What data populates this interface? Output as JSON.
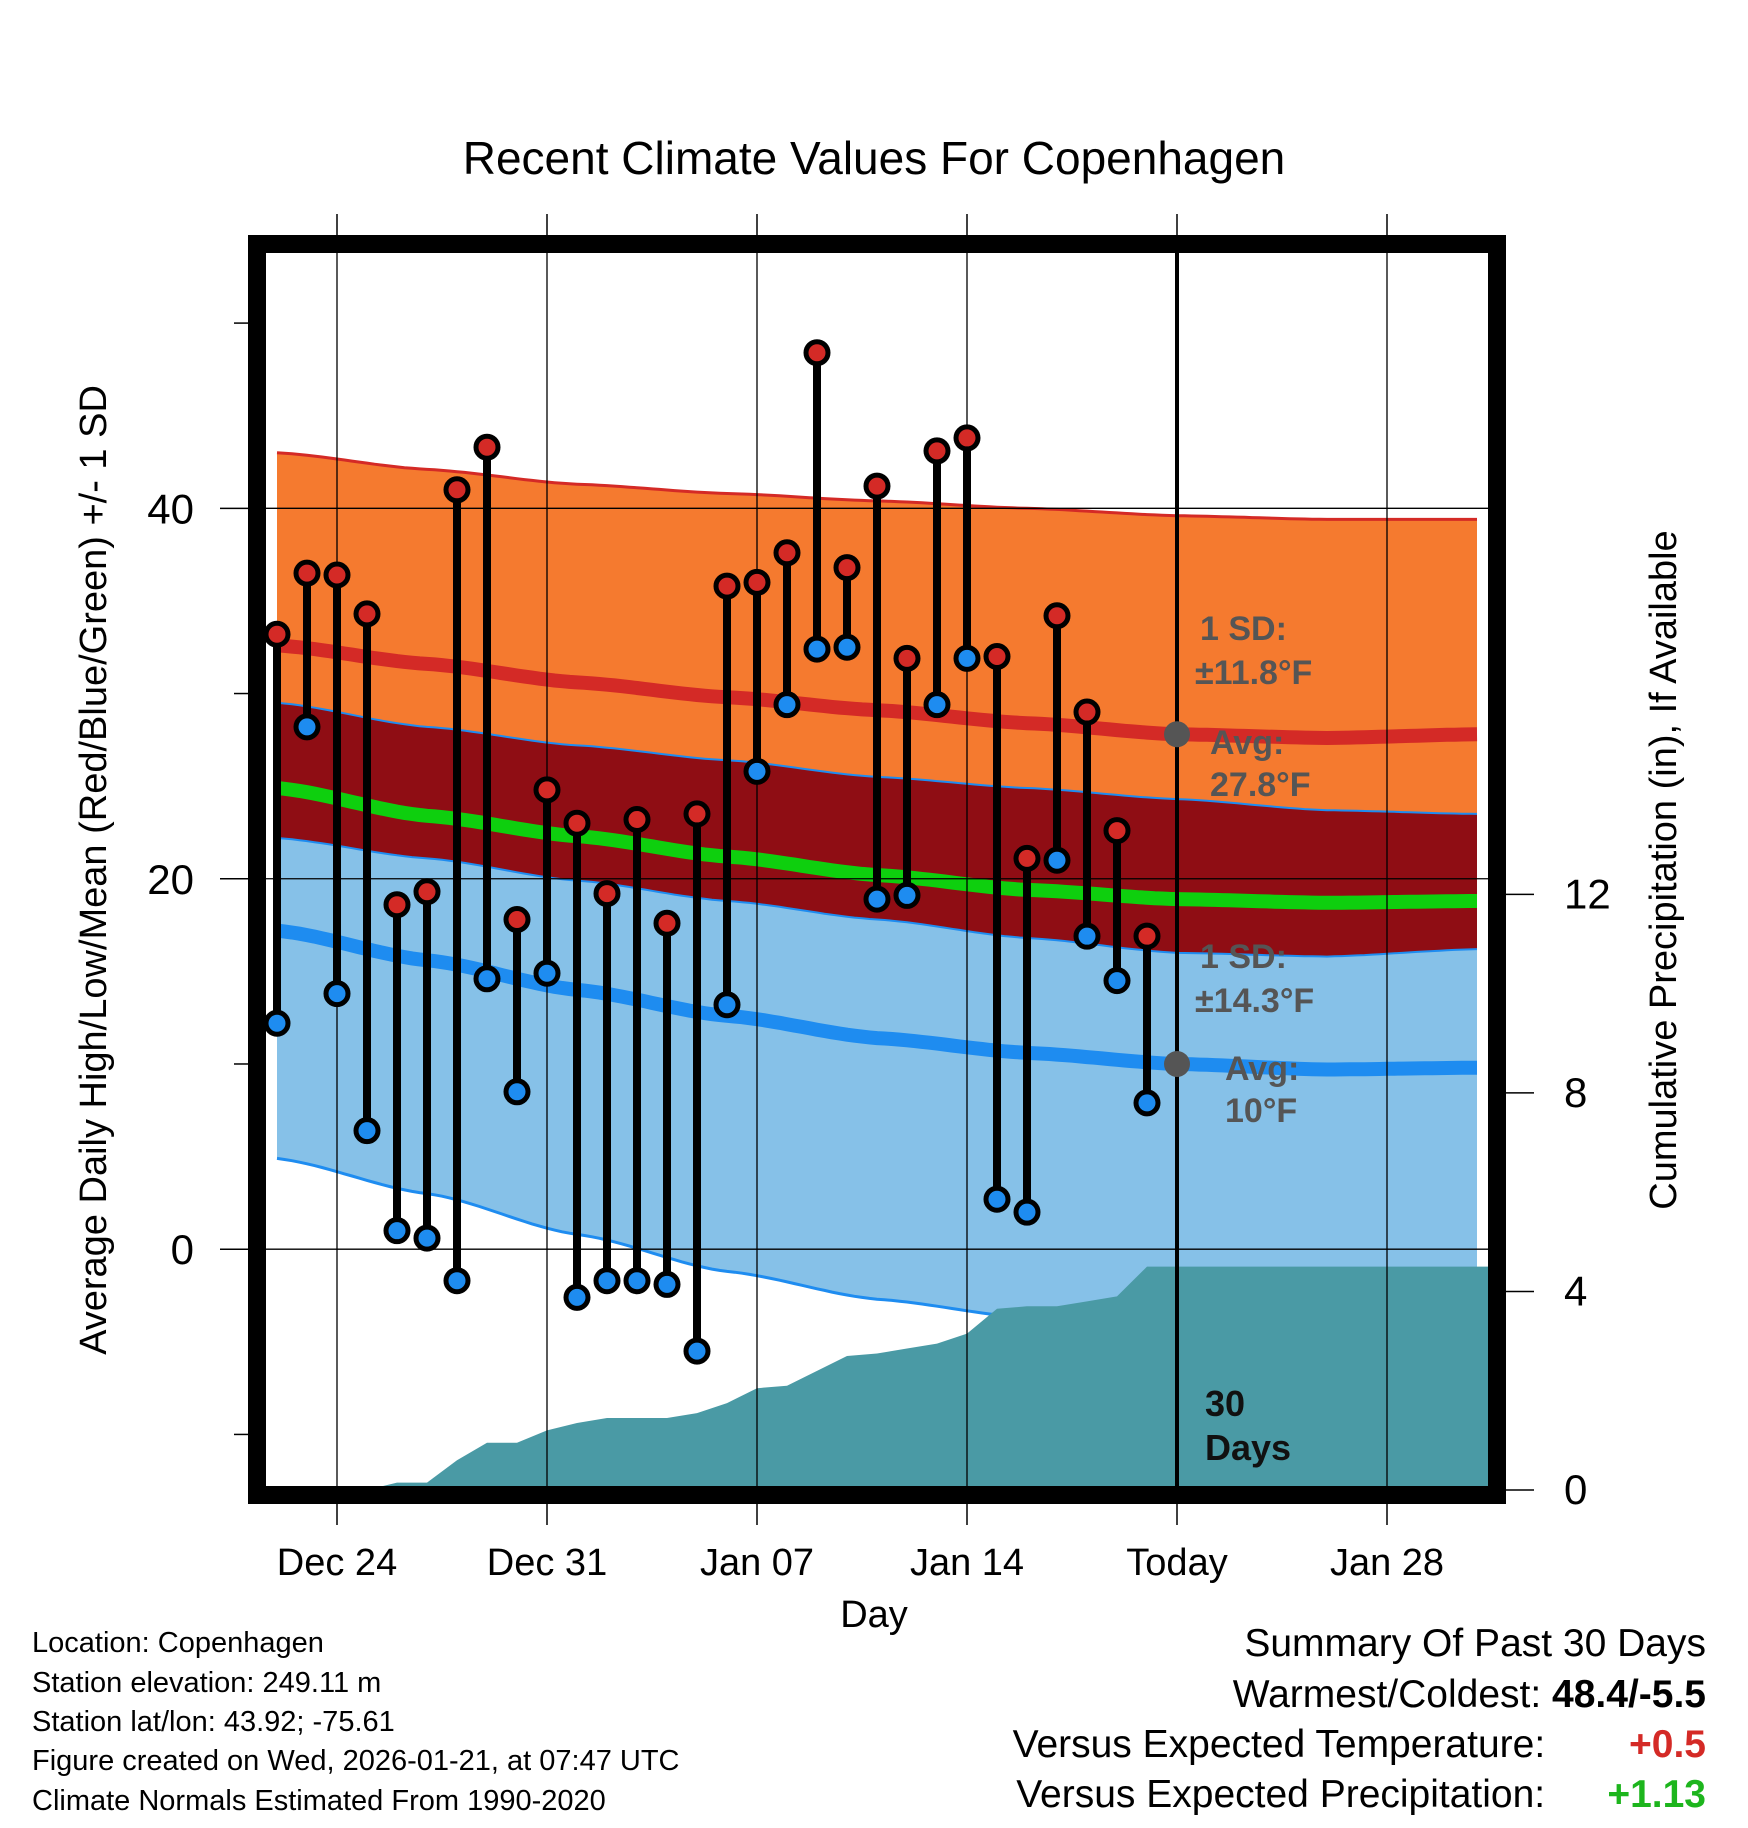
{
  "chart_data": {
    "type": "line",
    "title": "Recent Climate Values For Copenhagen",
    "xlabel": "Day",
    "ylabel": "Average Daily High/Low/Mean (Red/Blue/Green) +/- 1 SD",
    "y2label": "Cumulative Precipitation (in), If Available",
    "ylim": [
      -13,
      54
    ],
    "y2lim": [
      0,
      25
    ],
    "xlim": [
      0.5,
      41.5
    ],
    "y_ticks": [
      "40",
      "20",
      "0"
    ],
    "y2_ticks": [
      "12",
      "8",
      "4",
      "0"
    ],
    "x_tick_labels": [
      "Dec 24",
      "Dec 31",
      "Jan 07",
      "Jan 14",
      "Today",
      "Jan 28"
    ],
    "today_day": 31,
    "daily": [
      {
        "day": 1,
        "high": 33.2,
        "low": 12.2
      },
      {
        "day": 2,
        "high": 36.5,
        "low": 28.2
      },
      {
        "day": 3,
        "high": 36.4,
        "low": 13.8
      },
      {
        "day": 4,
        "high": 34.3,
        "low": 6.4
      },
      {
        "day": 5,
        "high": 18.6,
        "low": 1.0
      },
      {
        "day": 6,
        "high": 19.3,
        "low": 0.6
      },
      {
        "day": 7,
        "high": 41.0,
        "low": -1.7
      },
      {
        "day": 8,
        "high": 43.3,
        "low": 14.6
      },
      {
        "day": 9,
        "high": 17.8,
        "low": 8.5
      },
      {
        "day": 10,
        "high": 24.8,
        "low": 14.9
      },
      {
        "day": 11,
        "high": 23.0,
        "low": -2.6
      },
      {
        "day": 12,
        "high": 19.2,
        "low": -1.7
      },
      {
        "day": 13,
        "high": 23.2,
        "low": -1.7
      },
      {
        "day": 14,
        "high": 17.6,
        "low": -1.9
      },
      {
        "day": 15,
        "high": 23.5,
        "low": -5.5
      },
      {
        "day": 16,
        "high": 35.8,
        "low": 13.2
      },
      {
        "day": 17,
        "high": 36.0,
        "low": 25.8
      },
      {
        "day": 18,
        "high": 37.6,
        "low": 29.4
      },
      {
        "day": 19,
        "high": 48.4,
        "low": 32.4
      },
      {
        "day": 20,
        "high": 36.8,
        "low": 32.5
      },
      {
        "day": 21,
        "high": 41.2,
        "low": 18.9
      },
      {
        "day": 22,
        "high": 31.9,
        "low": 19.1
      },
      {
        "day": 23,
        "high": 43.1,
        "low": 29.4
      },
      {
        "day": 24,
        "high": 43.8,
        "low": 31.9
      },
      {
        "day": 25,
        "high": 32.0,
        "low": 2.7
      },
      {
        "day": 26,
        "high": 21.1,
        "low": 2.0
      },
      {
        "day": 27,
        "high": 34.2,
        "low": 21.0
      },
      {
        "day": 28,
        "high": 29.0,
        "low": 16.9
      },
      {
        "day": 29,
        "high": 22.6,
        "low": 14.5
      },
      {
        "day": 30,
        "high": 16.9,
        "low": 7.9
      }
    ],
    "normals": {
      "days": [
        1,
        6,
        11,
        16,
        21,
        26,
        31,
        36,
        41
      ],
      "high_avg": [
        32.6,
        31.6,
        30.6,
        29.8,
        29.1,
        28.4,
        27.8,
        27.6,
        27.8
      ],
      "high_sd": [
        10.4,
        10.5,
        10.7,
        11.0,
        11.3,
        11.6,
        11.8,
        11.8,
        11.6
      ],
      "low_avg": [
        17.2,
        15.6,
        14.0,
        12.6,
        11.4,
        10.6,
        10.0,
        9.7,
        9.8
      ],
      "low_sd": [
        12.3,
        12.6,
        13.2,
        13.8,
        14.1,
        14.3,
        14.3,
        14.0,
        13.7
      ],
      "mean_avg": [
        24.9,
        23.4,
        22.3,
        21.2,
        20.2,
        19.4,
        18.9,
        18.7,
        18.8
      ]
    },
    "precip_cumulative": [
      {
        "day": 1,
        "value": 0
      },
      {
        "day": 4,
        "value": 0
      },
      {
        "day": 5,
        "value": 0.15
      },
      {
        "day": 6,
        "value": 0.15
      },
      {
        "day": 7,
        "value": 0.6
      },
      {
        "day": 8,
        "value": 0.95
      },
      {
        "day": 9,
        "value": 0.95
      },
      {
        "day": 10,
        "value": 1.2
      },
      {
        "day": 11,
        "value": 1.35
      },
      {
        "day": 12,
        "value": 1.45
      },
      {
        "day": 14,
        "value": 1.45
      },
      {
        "day": 15,
        "value": 1.55
      },
      {
        "day": 16,
        "value": 1.75
      },
      {
        "day": 17,
        "value": 2.05
      },
      {
        "day": 18,
        "value": 2.1
      },
      {
        "day": 19,
        "value": 2.4
      },
      {
        "day": 20,
        "value": 2.7
      },
      {
        "day": 21,
        "value": 2.75
      },
      {
        "day": 22,
        "value": 2.85
      },
      {
        "day": 23,
        "value": 2.95
      },
      {
        "day": 24,
        "value": 3.15
      },
      {
        "day": 25,
        "value": 3.65
      },
      {
        "day": 26,
        "value": 3.7
      },
      {
        "day": 27,
        "value": 3.7
      },
      {
        "day": 28,
        "value": 3.8
      },
      {
        "day": 29,
        "value": 3.9
      },
      {
        "day": 30,
        "value": 4.5
      },
      {
        "day": 41.5,
        "value": 4.5
      }
    ],
    "annotations": {
      "high_sd_label": "1 SD:",
      "high_sd_value": "±11.8°F",
      "high_avg_label": "Avg:",
      "high_avg_value": "27.8°F",
      "low_sd_label": "1 SD:",
      "low_sd_value": "±14.3°F",
      "low_avg_label": "Avg:",
      "low_avg_value": "10°F",
      "days_count": "30",
      "days_label": "Days"
    }
  },
  "footer": {
    "location": "Location: Copenhagen",
    "elevation": "Station elevation: 249.11 m",
    "latlon": "Station lat/lon: 43.92; -75.61",
    "created": "Figure created on Wed, 2026-01-21, at 07:47 UTC",
    "normals": "Climate Normals Estimated From 1990-2020"
  },
  "summary": {
    "title": "Summary Of Past 30 Days",
    "warmest_label": "Warmest/Coldest:",
    "warmest_value": "48.4/-5.5",
    "temp_label": "Versus Expected Temperature:",
    "temp_value": "+0.5",
    "precip_label": "Versus Expected Precipitation:",
    "precip_value": "+1.13"
  },
  "colors": {
    "high_band": "#f57a2f",
    "high_line": "#d42a26",
    "overlap_band": "#8f0d14",
    "low_band": "#86c1e8",
    "low_line": "#1e8cf0",
    "mean_line": "#0ecf0e",
    "precip_fill": "#4a9aa5",
    "annotation": "#555555",
    "warm_value": "#d42a26",
    "precip_value": "#1db51d"
  }
}
